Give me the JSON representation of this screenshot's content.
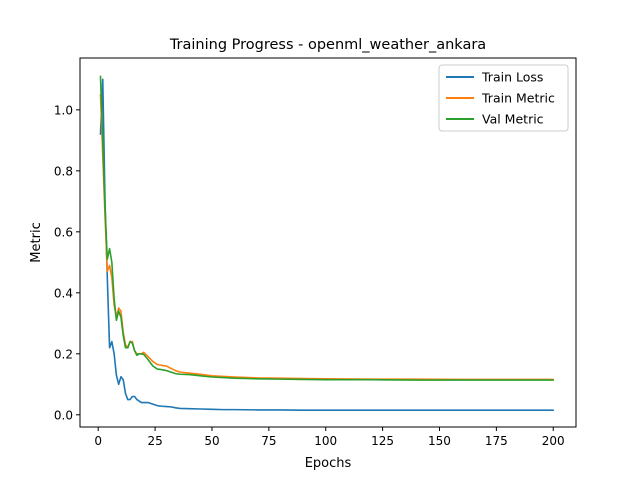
{
  "chart_data": {
    "type": "line",
    "title": "Training Progress - openml_weather_ankara",
    "xlabel": "Epochs",
    "ylabel": "Metric",
    "xlim": [
      -8,
      210
    ],
    "ylim": [
      -0.04,
      1.17
    ],
    "xticks": [
      0,
      25,
      50,
      75,
      100,
      125,
      150,
      175,
      200
    ],
    "yticks": [
      0.0,
      0.2,
      0.4,
      0.6,
      0.8,
      1.0
    ],
    "grid": false,
    "legend_position": "top-right",
    "series": [
      {
        "name": "Train Loss",
        "color": "#1f77b4",
        "x": [
          1,
          2,
          3,
          4,
          5,
          6,
          7,
          8,
          9,
          10,
          11,
          12,
          13,
          14,
          15,
          16,
          17,
          18,
          19,
          20,
          22,
          24,
          26,
          28,
          30,
          32,
          34,
          36,
          40,
          45,
          50,
          55,
          60,
          70,
          80,
          90,
          100,
          120,
          140,
          160,
          180,
          200
        ],
        "y": [
          0.92,
          1.1,
          0.7,
          0.45,
          0.22,
          0.24,
          0.2,
          0.13,
          0.1,
          0.125,
          0.115,
          0.07,
          0.05,
          0.05,
          0.06,
          0.06,
          0.05,
          0.045,
          0.04,
          0.04,
          0.04,
          0.035,
          0.03,
          0.028,
          0.027,
          0.026,
          0.023,
          0.021,
          0.02,
          0.019,
          0.018,
          0.017,
          0.017,
          0.016,
          0.016,
          0.015,
          0.015,
          0.015,
          0.015,
          0.015,
          0.015,
          0.015
        ]
      },
      {
        "name": "Train Metric",
        "color": "#ff7f0e",
        "x": [
          1,
          2,
          3,
          4,
          5,
          6,
          7,
          8,
          9,
          10,
          11,
          12,
          13,
          14,
          15,
          16,
          17,
          18,
          19,
          20,
          22,
          24,
          26,
          28,
          30,
          32,
          34,
          36,
          40,
          45,
          50,
          55,
          60,
          70,
          80,
          90,
          100,
          120,
          140,
          160,
          180,
          200
        ],
        "y": [
          1.05,
          0.85,
          0.65,
          0.47,
          0.49,
          0.45,
          0.36,
          0.32,
          0.35,
          0.34,
          0.27,
          0.23,
          0.22,
          0.24,
          0.24,
          0.21,
          0.2,
          0.2,
          0.2,
          0.205,
          0.19,
          0.175,
          0.165,
          0.162,
          0.16,
          0.152,
          0.145,
          0.14,
          0.137,
          0.133,
          0.128,
          0.126,
          0.124,
          0.121,
          0.12,
          0.119,
          0.118,
          0.117,
          0.117,
          0.116,
          0.116,
          0.116
        ]
      },
      {
        "name": "Val Metric",
        "color": "#2ca02c",
        "x": [
          1,
          2,
          3,
          4,
          5,
          6,
          7,
          8,
          9,
          10,
          11,
          12,
          13,
          14,
          15,
          16,
          17,
          18,
          19,
          20,
          22,
          24,
          26,
          28,
          30,
          32,
          34,
          36,
          40,
          45,
          50,
          55,
          60,
          70,
          80,
          90,
          100,
          120,
          140,
          160,
          180,
          200
        ],
        "y": [
          1.11,
          0.9,
          0.68,
          0.51,
          0.545,
          0.5,
          0.38,
          0.31,
          0.34,
          0.32,
          0.26,
          0.22,
          0.22,
          0.24,
          0.235,
          0.21,
          0.195,
          0.2,
          0.2,
          0.198,
          0.18,
          0.16,
          0.15,
          0.148,
          0.145,
          0.14,
          0.135,
          0.133,
          0.132,
          0.128,
          0.124,
          0.122,
          0.12,
          0.118,
          0.117,
          0.116,
          0.115,
          0.115,
          0.114,
          0.114,
          0.114,
          0.114
        ]
      }
    ]
  }
}
